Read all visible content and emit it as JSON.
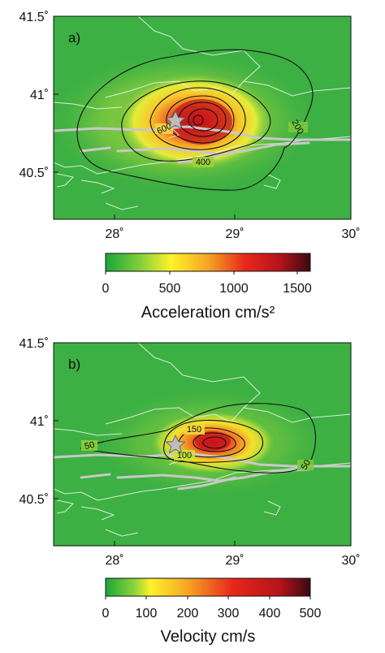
{
  "panels": [
    {
      "id": "a",
      "label": "a)",
      "lon_range": [
        27.5,
        30.1
      ],
      "lat_range": [
        40.2,
        41.5
      ],
      "lat_ticks": [
        {
          "value": 41.5,
          "text": "41.5˚"
        },
        {
          "value": 41.0,
          "text": "41˚"
        },
        {
          "value": 40.5,
          "text": "40.5˚"
        }
      ],
      "lon_ticks": [
        {
          "value": 28,
          "text": "28˚"
        },
        {
          "value": 29,
          "text": "29˚"
        },
        {
          "value": 30,
          "text": "30˚"
        }
      ],
      "contour_labels": [
        "600",
        "400",
        "200"
      ],
      "colorbar": {
        "title": "Acceleration cm/s²",
        "min": 0,
        "max": 1600,
        "ticks": [
          {
            "value": 0,
            "text": "0"
          },
          {
            "value": 500,
            "text": "500"
          },
          {
            "value": 1000,
            "text": "1000"
          },
          {
            "value": 1500,
            "text": "1500"
          }
        ]
      }
    },
    {
      "id": "b",
      "label": "b)",
      "lon_range": [
        27.5,
        30.1
      ],
      "lat_range": [
        40.2,
        41.5
      ],
      "lat_ticks": [
        {
          "value": 41.5,
          "text": "41.5˚"
        },
        {
          "value": 41.0,
          "text": "41˚"
        },
        {
          "value": 40.5,
          "text": "40.5˚"
        }
      ],
      "lon_ticks": [
        {
          "value": 28,
          "text": "28˚"
        },
        {
          "value": 29,
          "text": "29˚"
        },
        {
          "value": 30,
          "text": "30˚"
        }
      ],
      "contour_labels": [
        "150",
        "100",
        "50",
        "50"
      ],
      "colorbar": {
        "title": "Velocity cm/s",
        "min": 0,
        "max": 500,
        "ticks": [
          {
            "value": 0,
            "text": "0"
          },
          {
            "value": 100,
            "text": "100"
          },
          {
            "value": 200,
            "text": "200"
          },
          {
            "value": 300,
            "text": "300"
          },
          {
            "value": 400,
            "text": "400"
          },
          {
            "value": 500,
            "text": "500"
          }
        ]
      }
    }
  ],
  "colors": {
    "background_green": "#3cb043",
    "scale": [
      "#1aa63a",
      "#5cc43a",
      "#fff22a",
      "#f5a623",
      "#e8271c",
      "#c01818",
      "#3a0a10"
    ],
    "fault": "#c8c8c8",
    "coastline": "#e8f4e8",
    "contour": "#111111",
    "epicenter": "#bdbdbd"
  },
  "icons": {
    "epicenter": "star-icon"
  }
}
